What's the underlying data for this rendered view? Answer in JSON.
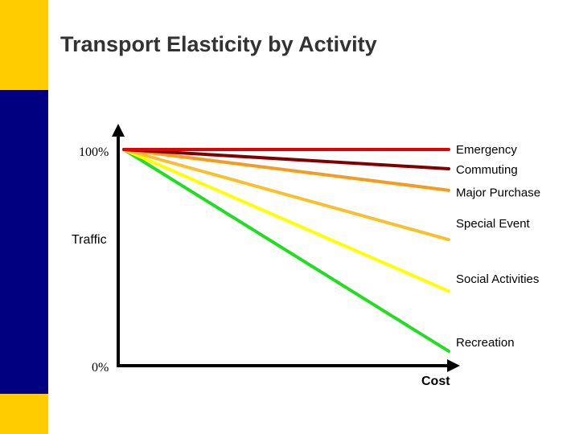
{
  "slide": {
    "title": "Transport Elasticity by Activity",
    "colors": {
      "band_yellow": "#FFCC00",
      "band_navy": "#000080",
      "title_text": "#333333",
      "axis": "#000000"
    }
  },
  "chart_data": {
    "type": "line",
    "title": "Transport Elasticity by Activity",
    "xlabel": "Cost",
    "ylabel": "Traffic",
    "y_tick_labels": {
      "top": "100%",
      "bottom": "0%"
    },
    "xlim": [
      0,
      1
    ],
    "ylim": [
      0,
      100
    ],
    "grid": false,
    "legend": "right-of-line-ends",
    "series": [
      {
        "name": "Emergency",
        "x": [
          0,
          1
        ],
        "values": [
          100,
          100
        ],
        "color": "#E60000"
      },
      {
        "name": "Commuting",
        "x": [
          0,
          1
        ],
        "values": [
          100,
          91
        ],
        "color": "#800000"
      },
      {
        "name": "Major Purchase",
        "x": [
          0,
          1
        ],
        "values": [
          100,
          81
        ],
        "color": "#F39C1E"
      },
      {
        "name": "Special Event",
        "x": [
          0,
          1
        ],
        "values": [
          100,
          58
        ],
        "color": "#F7C12E"
      },
      {
        "name": "Social Activities",
        "x": [
          0,
          1
        ],
        "values": [
          100,
          34
        ],
        "color": "#FFFF00"
      },
      {
        "name": "Recreation",
        "x": [
          0,
          1
        ],
        "values": [
          100,
          6
        ],
        "color": "#22DD22"
      }
    ]
  }
}
